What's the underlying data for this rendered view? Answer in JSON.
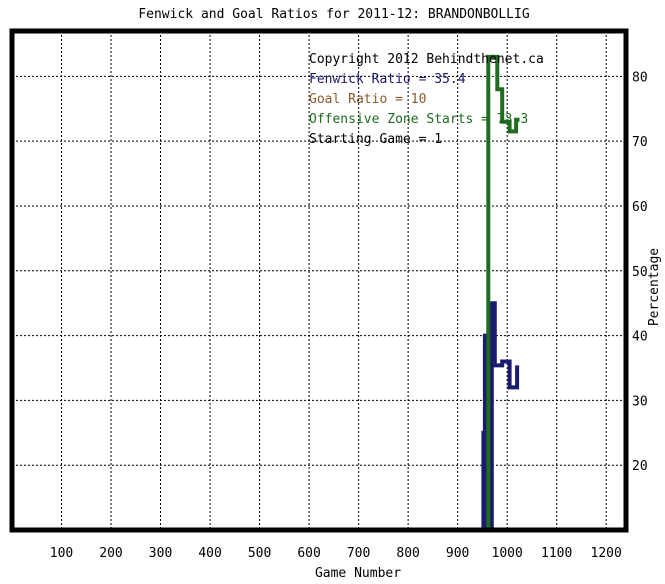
{
  "chart_data": {
    "type": "line",
    "title": "Fenwick and Goal Ratios for 2011-12: BRANDONBOLLIG",
    "xlabel": "Game Number",
    "ylabel": "Percentage",
    "xlim": [
      0,
      1240
    ],
    "ylim": [
      10,
      87
    ],
    "x_ticks": [
      100,
      200,
      300,
      400,
      500,
      600,
      700,
      800,
      900,
      1000,
      1100,
      1200
    ],
    "y_ticks": [
      20,
      30,
      40,
      50,
      60,
      70,
      80
    ],
    "grid": true,
    "legend_placement": "top-right",
    "annotations": [
      "Copyright 2012 Behindthenet.ca",
      "Fenwick Ratio = 35.4",
      "Goal Ratio = 10",
      "Offensive Zone Starts = 73.3",
      "Starting Game = 1"
    ],
    "series": [
      {
        "name": "Fenwick Ratio",
        "color": "#1a1a6e",
        "points": [
          [
            952,
            10
          ],
          [
            952,
            25
          ],
          [
            955,
            25
          ],
          [
            955,
            40
          ],
          [
            960,
            40
          ],
          [
            960,
            5
          ],
          [
            969,
            5
          ],
          [
            969,
            45
          ],
          [
            975,
            45
          ],
          [
            975,
            35.4
          ],
          [
            990,
            35.4
          ],
          [
            990,
            36
          ],
          [
            1005,
            36
          ],
          [
            1005,
            32
          ],
          [
            1020,
            32
          ],
          [
            1020,
            35.4
          ]
        ]
      },
      {
        "name": "Goal Ratio",
        "color": "#8b5a2b",
        "points": []
      },
      {
        "name": "Offensive Zone Starts",
        "color": "#1f6b1f",
        "points": [
          [
            962,
            10
          ],
          [
            962,
            83
          ],
          [
            980,
            83
          ],
          [
            980,
            78
          ],
          [
            990,
            78
          ],
          [
            990,
            73
          ],
          [
            1005,
            73
          ],
          [
            1005,
            71.5
          ],
          [
            1018,
            71.5
          ],
          [
            1018,
            73.3
          ],
          [
            1025,
            73.3
          ]
        ]
      }
    ]
  }
}
